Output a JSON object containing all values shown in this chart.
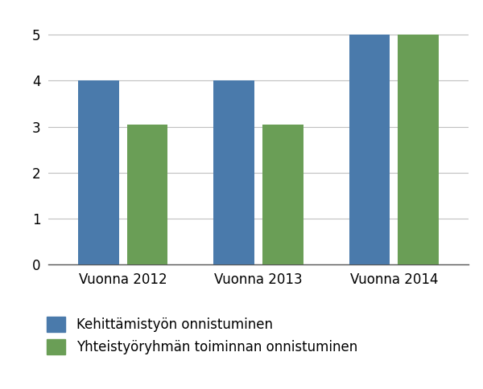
{
  "categories": [
    "Vuonna 2012",
    "Vuonna 2013",
    "Vuonna 2014"
  ],
  "series1_label": "Kehittämistyön onnistuminen",
  "series2_label": "Yhteistyöryhmän toiminnan onnistuminen",
  "series1_values": [
    4.0,
    4.0,
    5.0
  ],
  "series2_values": [
    3.05,
    3.05,
    5.0
  ],
  "series1_color": "#4a7aab",
  "series2_color": "#6a9e56",
  "background_color": "#ffffff",
  "ylim": [
    0,
    5.5
  ],
  "yticks": [
    0,
    1,
    2,
    3,
    4,
    5
  ],
  "bar_width": 0.3,
  "grid_color": "#c0c0c0",
  "tick_fontsize": 12,
  "legend_fontsize": 12
}
